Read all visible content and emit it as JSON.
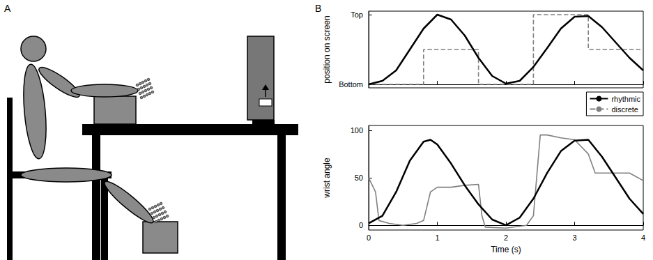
{
  "panel_labels": [
    "A",
    "B"
  ],
  "chart_data": [
    {
      "type": "line",
      "ylabel": "position on screen",
      "xlim": [
        0,
        4
      ],
      "xticks": [
        0,
        1,
        2,
        3,
        4
      ],
      "ylim": [
        -0.05,
        1.05
      ],
      "yticks": [
        {
          "value": 0,
          "label": "Bottom"
        },
        {
          "value": 1,
          "label": "Top"
        }
      ],
      "tick_labels": "y",
      "grid": false,
      "legend": "lower right",
      "series": [
        {
          "name": "rhythmic",
          "color": "#000000",
          "type": "line",
          "line_style": "solid",
          "x": [
            0,
            0.2,
            0.4,
            0.6,
            0.8,
            1.0,
            1.2,
            1.4,
            1.6,
            1.8,
            2.0,
            2.2,
            2.4,
            2.6,
            2.8,
            3.0,
            3.2,
            3.4,
            3.6,
            3.8,
            4.0
          ],
          "values": [
            0,
            0.05,
            0.2,
            0.5,
            0.8,
            1.0,
            0.93,
            0.7,
            0.38,
            0.12,
            0.01,
            0.05,
            0.25,
            0.52,
            0.8,
            0.97,
            0.98,
            0.82,
            0.6,
            0.38,
            0.2
          ]
        },
        {
          "name": "discrete",
          "color": "#808080",
          "type": "step",
          "line_style": "dashed",
          "x": [
            0,
            0.8,
            1.6,
            2.4,
            3.2,
            4.0
          ],
          "values": [
            0,
            0.5,
            0,
            1,
            0.5,
            0.5
          ]
        }
      ]
    },
    {
      "type": "line",
      "xlabel": "Time (s)",
      "ylabel": "wrist angle",
      "xlim": [
        0,
        4
      ],
      "xticks": [
        0,
        1,
        2,
        3,
        4
      ],
      "ylim": [
        -5,
        105
      ],
      "yticks": [
        0,
        50,
        100
      ],
      "grid": false,
      "series": [
        {
          "color": "#000000",
          "type": "line",
          "line_style": "solid",
          "x": [
            0,
            0.2,
            0.4,
            0.6,
            0.8,
            0.9,
            1.0,
            1.2,
            1.4,
            1.6,
            1.8,
            2.0,
            2.2,
            2.4,
            2.6,
            2.8,
            3.0,
            3.2,
            3.4,
            3.6,
            3.8,
            4.0
          ],
          "values": [
            2,
            10,
            35,
            68,
            88,
            90,
            85,
            65,
            42,
            22,
            6,
            0,
            8,
            28,
            55,
            78,
            89,
            90,
            72,
            50,
            28,
            12
          ]
        },
        {
          "color": "#808080",
          "type": "line",
          "line_style": "solid",
          "x": [
            0,
            0.1,
            0.15,
            0.3,
            0.5,
            0.7,
            0.8,
            0.9,
            1.0,
            1.2,
            1.4,
            1.6,
            1.65,
            1.7,
            2.0,
            2.3,
            2.4,
            2.5,
            2.6,
            2.8,
            3.0,
            3.2,
            3.3,
            3.5,
            3.7,
            3.8,
            4.0
          ],
          "values": [
            50,
            35,
            5,
            2,
            0,
            2,
            5,
            35,
            40,
            40,
            42,
            43,
            10,
            -2,
            -3,
            0,
            10,
            95,
            95,
            92,
            90,
            75,
            55,
            55,
            55,
            55,
            47
          ]
        }
      ]
    }
  ]
}
